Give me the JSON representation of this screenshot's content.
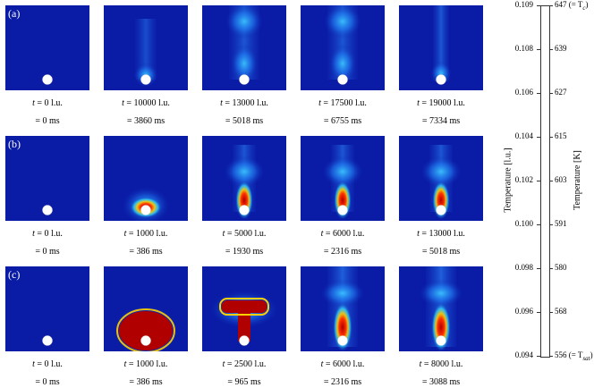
{
  "rows": [
    {
      "label": "(a)",
      "panels": [
        {
          "mode": "empty",
          "t": "t",
          "lu": " = 0 l.u.",
          "ms": "= 0 ms"
        },
        {
          "mode": "bubble",
          "t": "t",
          "lu": " = 10000 l.u.",
          "ms": "= 3860 ms"
        },
        {
          "mode": "plume",
          "t": "t",
          "lu": " = 13000 l.u.",
          "ms": "= 5018 ms"
        },
        {
          "mode": "plume",
          "t": "t",
          "lu": " = 17500 l.u.",
          "ms": "= 6755 ms"
        },
        {
          "mode": "thin",
          "t": "t",
          "lu": " = 19000 l.u.",
          "ms": "= 7334 ms"
        }
      ]
    },
    {
      "label": "(b)",
      "panels": [
        {
          "mode": "empty",
          "t": "t",
          "lu": " = 0 l.u.",
          "ms": "= 0 ms"
        },
        {
          "mode": "hotbubble",
          "t": "t",
          "lu": " = 1000 l.u.",
          "ms": "= 386 ms"
        },
        {
          "mode": "jet",
          "t": "t",
          "lu": " = 5000 l.u.",
          "ms": "= 1930 ms"
        },
        {
          "mode": "jet",
          "t": "t",
          "lu": " = 6000 l.u.",
          "ms": "= 2316 ms"
        },
        {
          "mode": "jet",
          "t": "t",
          "lu": " = 13000 l.u.",
          "ms": "= 5018 ms"
        }
      ]
    },
    {
      "label": "(c)",
      "panels": [
        {
          "mode": "empty",
          "t": "t",
          "lu": " = 0 l.u.",
          "ms": "= 0 ms"
        },
        {
          "mode": "bigbubble",
          "t": "t",
          "lu": " = 1000 l.u.",
          "ms": "= 386 ms"
        },
        {
          "mode": "mushroom",
          "t": "t",
          "lu": " = 2500 l.u.",
          "ms": "= 965 ms"
        },
        {
          "mode": "hotjet",
          "t": "t",
          "lu": " = 6000 l.u.",
          "ms": "= 2316 ms"
        },
        {
          "mode": "hotjet",
          "t": "t",
          "lu": " = 8000 l.u.",
          "ms": "= 3088 ms"
        }
      ]
    }
  ],
  "colorbar": {
    "left_title": "Temperature [l.u.]",
    "right_title": "Temperature [K]",
    "left_ticks": [
      "0.109",
      "0.108",
      "0.106",
      "0.104",
      "0.102",
      "0.100",
      "0.098",
      "0.096",
      "0.094"
    ],
    "right_ticks": [
      "647 (= T",
      "639",
      "627",
      "615",
      "603",
      "591",
      "580",
      "568",
      "556 (= T"
    ],
    "top_sub": "c",
    "bottom_sub": "sat",
    "close_paren": ")"
  }
}
